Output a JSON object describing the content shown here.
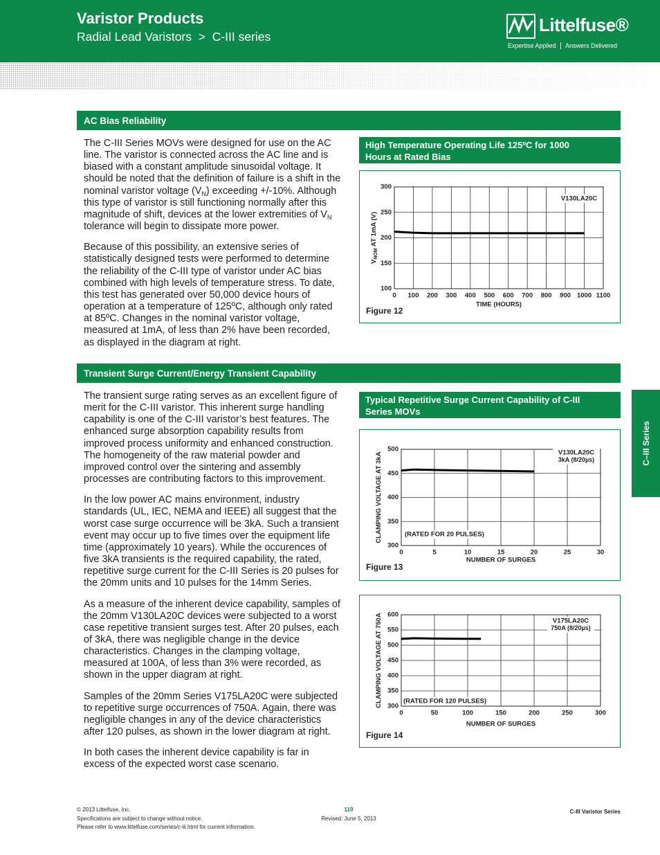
{
  "header": {
    "title": "Varistor Products",
    "subtitle": "Radial Lead Varistors  >  C-III series"
  },
  "logo": {
    "name": "Littelfuse®",
    "tagline_left": "Expertise Applied",
    "tagline_right": "Answers Delivered"
  },
  "side_tab": "C–III Series",
  "sections": [
    {
      "heading": "AC Bias Reliability",
      "paragraphs": [
        [
          {
            "text": "The C-III Series MOVs were designed for use on the AC line. The varistor is connected across the AC line and is biased with a constant amplitude sinusoidal voltage. It should be noted that the definition of failure is a shift in the nominal varistor voltage (V"
          },
          {
            "text": "N",
            "sub": true
          },
          {
            "text": ") exceeding +/-10%. Although this type of varistor is still functioning normally after this magnitude of shift, devices at the lower extremities of V"
          },
          {
            "text": "N",
            "sub": true
          },
          {
            "text": " tolerance will begin to dissipate more power."
          }
        ],
        [
          {
            "text": "Because of this possibility, an extensive series of statistically designed tests were performed to determine the reliability of the C-III type of varistor under AC bias combined with high levels of temperature stress. To date, this test has generated over 50,000 device hours of operation at a temperature of 125ºC, although only rated at 85ºC. Changes in the nominal varistor voltage, measured at 1mA, of less than 2% have been recorded, as displayed in the diagram at right."
          }
        ]
      ]
    },
    {
      "heading": "Transient Surge Current/Energy Transient Capability",
      "paragraphs": [
        [
          {
            "text": "The transient surge rating serves as an excellent figure of merit for the C-III varistor. This inherent surge handling capability is one of the C-III varistor’s best features. The enhanced surge absorption capability results from improved process uniformity and enhanced construction. The homogeneity of the raw material powder and improved control over the sintering and assembly processes are contributing factors to this improvement."
          }
        ],
        [
          {
            "text": "In the low power AC mains environment, industry standards (UL, IEC, NEMA and IEEE) all suggest that the worst case surge occurrence will be 3kA. Such a transient event may occur up to five times over the equipment life time (approximately 10 years). While the occurences of five 3kA transients is the required capability, the rated, repetitive surge current for the C-III Series is 20 pulses for the 20mm units and 10 pulses for the 14mm Series."
          }
        ],
        [
          {
            "text": "As a measure of the inherent device capability, samples of the 20mm V130LA20C devices were subjected to a worst case repetitive transient surges test. After 20 pulses, each of 3kA, there was negligible change in the device characteristics. Changes in the clamping voltage, measured at 100A, of less than 3% were recorded, as shown in the upper diagram at right."
          }
        ],
        [
          {
            "text": "Samples of the 20mm Series V175LA20C were subjected to repetitive surge occurrences of 750A. Again, there was negligible changes in any of the device characteristics after 120 pulses, as shown in the lower diagram at right."
          }
        ],
        [
          {
            "text": "In both cases the inherent device capability is far in excess of the expected worst case scenario."
          }
        ]
      ]
    }
  ],
  "chart_data": [
    {
      "type": "line",
      "title": "High Temperature Operating Life 125ºC for 1000 Hours at Rated Bias",
      "caption": "Figure 12",
      "xlabel": "TIME (HOURS)",
      "ylabel": [
        {
          "text": "V"
        },
        {
          "text": "NOM",
          "sub": true
        },
        {
          "text": " AT 1mA (V)"
        }
      ],
      "x": [
        0,
        100,
        200,
        300,
        400,
        500,
        600,
        700,
        800,
        900,
        1000
      ],
      "series": [
        {
          "name": "V130LA20C",
          "color": "#000000",
          "values": [
            212,
            210,
            209,
            209,
            209,
            209,
            209,
            209,
            209,
            209,
            209
          ]
        }
      ],
      "xlim": [
        0,
        1100
      ],
      "xticks": [
        0,
        100,
        200,
        300,
        400,
        500,
        600,
        700,
        800,
        900,
        1000,
        1100
      ],
      "ylim": [
        100,
        300
      ],
      "yticks": [
        100,
        150,
        200,
        250,
        300
      ],
      "grid": true
    },
    {
      "type": "line",
      "title": "Typical Repetitive Surge Current Capability of C-III Series MOVs",
      "caption": "Figure 13",
      "xlabel": "NUMBER OF SURGES",
      "ylabel": [
        {
          "text": "CLAMPING VOLTAGE AT 3kA"
        }
      ],
      "annotation": "(RATED FOR 20 PULSES)",
      "x": [
        0,
        2,
        5,
        10,
        15,
        20
      ],
      "series": [
        {
          "name": "V130LA20C",
          "note": "3kA (8/20µs)",
          "color": "#000000",
          "values": [
            456,
            458,
            457,
            456,
            455,
            454
          ]
        }
      ],
      "xlim": [
        0,
        30
      ],
      "xticks": [
        0,
        5,
        10,
        15,
        20,
        25,
        30
      ],
      "ylim": [
        300,
        500
      ],
      "yticks": [
        300,
        350,
        400,
        450,
        500
      ],
      "grid": true
    },
    {
      "type": "line",
      "caption": "Figure 14",
      "xlabel": "NUMBER OF SURGES",
      "ylabel": [
        {
          "text": "CLAMPING VOLTAGE AT 750A"
        }
      ],
      "annotation": "(RATED FOR 120 PULSES)",
      "x": [
        0,
        20,
        50,
        100,
        120
      ],
      "series": [
        {
          "name": "V175LA20C",
          "note": "750A (8/20µs)",
          "color": "#000000",
          "values": [
            521,
            523,
            522,
            521,
            521
          ]
        }
      ],
      "xlim": [
        0,
        300
      ],
      "xticks": [
        0,
        50,
        100,
        150,
        200,
        250,
        300
      ],
      "ylim": [
        300,
        600
      ],
      "yticks": [
        300,
        350,
        400,
        450,
        500,
        550,
        600
      ],
      "grid": true
    }
  ],
  "footer": {
    "copyright": "© 2013 Littelfuse, Inc.",
    "notice": "Specifications are subject to change without notice.",
    "refer": "Please refer to www.littelfuse.com/series/c-iii.html for current information.",
    "page": "119",
    "revised": "Revised: June 5, 2013",
    "series": "C-III Varistor Series"
  }
}
